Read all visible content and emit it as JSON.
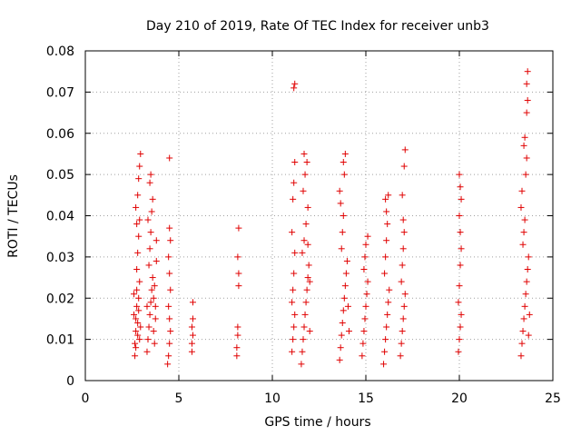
{
  "chart_data": {
    "type": "scatter",
    "title": "Day 210 of 2019, Rate Of TEC Index for receiver unb3",
    "xlabel": "GPS time / hours",
    "ylabel": "ROTI / TECUs",
    "xlim": [
      0,
      25
    ],
    "ylim": [
      0,
      0.08
    ],
    "xticks": [
      0,
      5,
      10,
      15,
      20,
      25
    ],
    "yticks": [
      0,
      0.01,
      0.02,
      0.03,
      0.04,
      0.05,
      0.06,
      0.07,
      0.08
    ],
    "xtick_labels": [
      "0",
      "5",
      "10",
      "15",
      "20",
      "25"
    ],
    "ytick_labels": [
      "0",
      "0.01",
      "0.02",
      "0.03",
      "0.04",
      "0.05",
      "0.06",
      "0.07",
      "0.08"
    ],
    "grid": true,
    "marker": "plus",
    "marker_color": "#e00000",
    "series": [
      {
        "points": [
          [
            2.65,
            0.006
          ],
          [
            2.65,
            0.009
          ],
          [
            2.7,
            0.012
          ],
          [
            2.7,
            0.015
          ],
          [
            2.75,
            0.018
          ],
          [
            2.75,
            0.022
          ],
          [
            2.7,
            0.008
          ],
          [
            2.8,
            0.011
          ],
          [
            2.8,
            0.014
          ],
          [
            2.85,
            0.017
          ],
          [
            2.85,
            0.02
          ],
          [
            2.9,
            0.024
          ],
          [
            2.9,
            0.01
          ],
          [
            2.95,
            0.013
          ],
          [
            2.6,
            0.016
          ],
          [
            2.6,
            0.021
          ],
          [
            2.75,
            0.027
          ],
          [
            2.8,
            0.031
          ],
          [
            2.85,
            0.035
          ],
          [
            2.9,
            0.039
          ],
          [
            2.8,
            0.045
          ],
          [
            2.85,
            0.049
          ],
          [
            2.9,
            0.052
          ],
          [
            2.95,
            0.055
          ],
          [
            2.7,
            0.042
          ],
          [
            2.75,
            0.038
          ],
          [
            3.3,
            0.007
          ],
          [
            3.35,
            0.01
          ],
          [
            3.4,
            0.013
          ],
          [
            3.45,
            0.016
          ],
          [
            3.5,
            0.019
          ],
          [
            3.55,
            0.022
          ],
          [
            3.6,
            0.025
          ],
          [
            3.65,
            0.012
          ],
          [
            3.7,
            0.009
          ],
          [
            3.75,
            0.015
          ],
          [
            3.3,
            0.018
          ],
          [
            3.4,
            0.028
          ],
          [
            3.45,
            0.032
          ],
          [
            3.5,
            0.036
          ],
          [
            3.55,
            0.041
          ],
          [
            3.6,
            0.044
          ],
          [
            3.5,
            0.05
          ],
          [
            3.45,
            0.048
          ],
          [
            3.7,
            0.023
          ],
          [
            3.75,
            0.018
          ],
          [
            3.8,
            0.029
          ],
          [
            3.8,
            0.034
          ],
          [
            3.35,
            0.039
          ],
          [
            3.65,
            0.02
          ],
          [
            4.4,
            0.004
          ],
          [
            4.45,
            0.006
          ],
          [
            4.5,
            0.009
          ],
          [
            4.55,
            0.012
          ],
          [
            4.5,
            0.015
          ],
          [
            4.45,
            0.018
          ],
          [
            4.55,
            0.022
          ],
          [
            4.5,
            0.026
          ],
          [
            4.45,
            0.03
          ],
          [
            4.55,
            0.034
          ],
          [
            4.5,
            0.037
          ],
          [
            4.5,
            0.054
          ],
          [
            5.7,
            0.007
          ],
          [
            5.7,
            0.009
          ],
          [
            5.75,
            0.011
          ],
          [
            5.7,
            0.013
          ],
          [
            5.75,
            0.015
          ],
          [
            5.75,
            0.019
          ],
          [
            8.1,
            0.006
          ],
          [
            8.1,
            0.008
          ],
          [
            8.15,
            0.011
          ],
          [
            8.15,
            0.013
          ],
          [
            8.2,
            0.023
          ],
          [
            8.2,
            0.026
          ],
          [
            8.15,
            0.03
          ],
          [
            8.2,
            0.037
          ],
          [
            11.05,
            0.007
          ],
          [
            11.1,
            0.01
          ],
          [
            11.15,
            0.013
          ],
          [
            11.2,
            0.016
          ],
          [
            11.05,
            0.019
          ],
          [
            11.1,
            0.022
          ],
          [
            11.15,
            0.026
          ],
          [
            11.2,
            0.031
          ],
          [
            11.05,
            0.036
          ],
          [
            11.1,
            0.044
          ],
          [
            11.15,
            0.048
          ],
          [
            11.2,
            0.053
          ],
          [
            11.15,
            0.071
          ],
          [
            11.2,
            0.072
          ],
          [
            11.55,
            0.004
          ],
          [
            11.6,
            0.007
          ],
          [
            11.65,
            0.01
          ],
          [
            11.7,
            0.013
          ],
          [
            11.75,
            0.016
          ],
          [
            11.8,
            0.019
          ],
          [
            11.85,
            0.022
          ],
          [
            11.9,
            0.025
          ],
          [
            11.95,
            0.028
          ],
          [
            12.0,
            0.012
          ],
          [
            11.6,
            0.031
          ],
          [
            11.7,
            0.034
          ],
          [
            11.8,
            0.038
          ],
          [
            11.9,
            0.042
          ],
          [
            11.65,
            0.046
          ],
          [
            11.75,
            0.05
          ],
          [
            11.85,
            0.053
          ],
          [
            11.7,
            0.055
          ],
          [
            11.9,
            0.033
          ],
          [
            12.0,
            0.024
          ],
          [
            13.6,
            0.005
          ],
          [
            13.65,
            0.008
          ],
          [
            13.7,
            0.011
          ],
          [
            13.75,
            0.014
          ],
          [
            13.8,
            0.017
          ],
          [
            13.85,
            0.02
          ],
          [
            13.9,
            0.023
          ],
          [
            13.95,
            0.026
          ],
          [
            14.0,
            0.029
          ],
          [
            13.7,
            0.032
          ],
          [
            13.75,
            0.036
          ],
          [
            13.8,
            0.04
          ],
          [
            13.65,
            0.043
          ],
          [
            13.6,
            0.046
          ],
          [
            13.85,
            0.05
          ],
          [
            13.8,
            0.053
          ],
          [
            13.9,
            0.055
          ],
          [
            14.05,
            0.018
          ],
          [
            14.1,
            0.012
          ],
          [
            14.8,
            0.006
          ],
          [
            14.85,
            0.009
          ],
          [
            14.9,
            0.012
          ],
          [
            14.95,
            0.015
          ],
          [
            15.0,
            0.018
          ],
          [
            15.05,
            0.021
          ],
          [
            15.1,
            0.024
          ],
          [
            14.9,
            0.027
          ],
          [
            14.95,
            0.03
          ],
          [
            15.0,
            0.033
          ],
          [
            15.1,
            0.035
          ],
          [
            15.95,
            0.004
          ],
          [
            16.0,
            0.007
          ],
          [
            16.05,
            0.01
          ],
          [
            16.1,
            0.013
          ],
          [
            16.15,
            0.016
          ],
          [
            16.2,
            0.019
          ],
          [
            16.25,
            0.022
          ],
          [
            16.0,
            0.026
          ],
          [
            16.05,
            0.03
          ],
          [
            16.1,
            0.034
          ],
          [
            16.15,
            0.038
          ],
          [
            16.1,
            0.041
          ],
          [
            16.05,
            0.044
          ],
          [
            16.2,
            0.045
          ],
          [
            16.85,
            0.006
          ],
          [
            16.9,
            0.009
          ],
          [
            16.95,
            0.012
          ],
          [
            17.0,
            0.015
          ],
          [
            17.05,
            0.018
          ],
          [
            17.1,
            0.021
          ],
          [
            16.9,
            0.024
          ],
          [
            16.95,
            0.028
          ],
          [
            17.0,
            0.032
          ],
          [
            17.05,
            0.036
          ],
          [
            17.0,
            0.039
          ],
          [
            16.95,
            0.045
          ],
          [
            17.05,
            0.052
          ],
          [
            17.1,
            0.056
          ],
          [
            19.95,
            0.007
          ],
          [
            20.0,
            0.01
          ],
          [
            20.05,
            0.013
          ],
          [
            20.1,
            0.016
          ],
          [
            19.95,
            0.019
          ],
          [
            20.0,
            0.023
          ],
          [
            20.05,
            0.028
          ],
          [
            20.1,
            0.032
          ],
          [
            20.05,
            0.036
          ],
          [
            20.0,
            0.04
          ],
          [
            20.1,
            0.044
          ],
          [
            20.05,
            0.047
          ],
          [
            20.0,
            0.05
          ],
          [
            23.3,
            0.006
          ],
          [
            23.35,
            0.009
          ],
          [
            23.4,
            0.012
          ],
          [
            23.45,
            0.015
          ],
          [
            23.5,
            0.018
          ],
          [
            23.55,
            0.021
          ],
          [
            23.6,
            0.024
          ],
          [
            23.65,
            0.027
          ],
          [
            23.7,
            0.03
          ],
          [
            23.4,
            0.033
          ],
          [
            23.45,
            0.036
          ],
          [
            23.5,
            0.039
          ],
          [
            23.3,
            0.042
          ],
          [
            23.35,
            0.046
          ],
          [
            23.55,
            0.05
          ],
          [
            23.6,
            0.054
          ],
          [
            23.45,
            0.057
          ],
          [
            23.5,
            0.059
          ],
          [
            23.6,
            0.065
          ],
          [
            23.65,
            0.068
          ],
          [
            23.6,
            0.072
          ],
          [
            23.65,
            0.075
          ],
          [
            23.7,
            0.011
          ],
          [
            23.75,
            0.016
          ]
        ]
      }
    ]
  }
}
